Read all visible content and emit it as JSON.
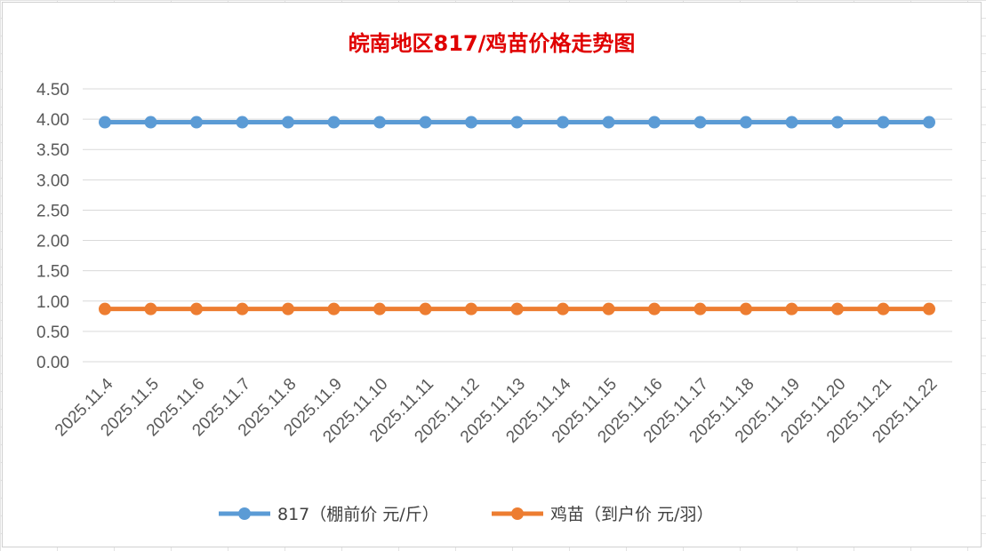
{
  "chart_data": {
    "type": "line",
    "title": "皖南地区817/鸡苗价格走势图",
    "categories": [
      "2025.11.4",
      "2025.11.5",
      "2025.11.6",
      "2025.11.7",
      "2025.11.8",
      "2025.11.9",
      "2025.11.10",
      "2025.11.11",
      "2025.11.12",
      "2025.11.13",
      "2025.11.14",
      "2025.11.15",
      "2025.11.16",
      "2025.11.17",
      "2025.11.18",
      "2025.11.19",
      "2025.11.20",
      "2025.11.21",
      "2025.11.22"
    ],
    "series": [
      {
        "name": "817（棚前价 元/斤）",
        "color": "#5b9bd5",
        "values": [
          3.95,
          3.95,
          3.95,
          3.95,
          3.95,
          3.95,
          3.95,
          3.95,
          3.95,
          3.95,
          3.95,
          3.95,
          3.95,
          3.95,
          3.95,
          3.95,
          3.95,
          3.95,
          3.95
        ]
      },
      {
        "name": "鸡苗（到户价 元/羽）",
        "color": "#ed7d31",
        "values": [
          0.87,
          0.87,
          0.87,
          0.87,
          0.87,
          0.87,
          0.87,
          0.87,
          0.87,
          0.87,
          0.87,
          0.87,
          0.87,
          0.87,
          0.87,
          0.87,
          0.87,
          0.87,
          0.87
        ]
      }
    ],
    "ylim": [
      0,
      4.5
    ],
    "yticks": [
      "0.00",
      "0.50",
      "1.00",
      "1.50",
      "2.00",
      "2.50",
      "3.00",
      "3.50",
      "4.00",
      "4.50"
    ],
    "grid": true,
    "legend_position": "bottom"
  }
}
